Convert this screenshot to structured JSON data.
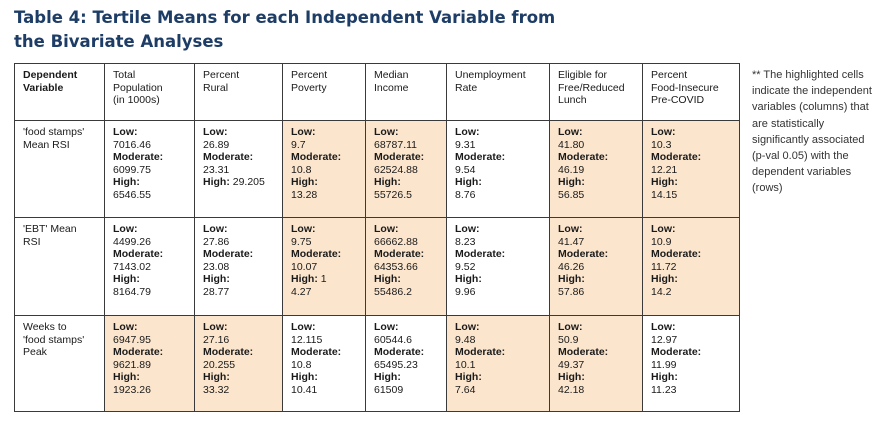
{
  "title": "Table 4: Tertile Means for each Independent Variable from the Bivariate Analyses",
  "note": "** The highlighted cells indicate the independent variables (columns) that are statistically significantly associated (p-val 0.05) with the dependent variables (rows)",
  "colors": {
    "highlight": "#fbe5cd",
    "title": "#1d3d66",
    "border": "#3a3a3a"
  },
  "table": {
    "headers": [
      [
        "Dependent",
        "Variable"
      ],
      [
        "Total",
        "Population",
        "(in 1000s)"
      ],
      [
        "Percent",
        "Rural"
      ],
      [
        "Percent",
        "Poverty"
      ],
      [
        "Median",
        "Income"
      ],
      [
        "Unemployment",
        "Rate"
      ],
      [
        "Eligible for",
        "Free/Reduced",
        "Lunch"
      ],
      [
        "Percent",
        "Food-Insecure",
        "Pre-COVID"
      ]
    ],
    "rows": [
      {
        "label": [
          "'food stamps'",
          "Mean RSI"
        ],
        "cells": [
          {
            "highlight": false,
            "lines": [
              {
                "l": "Low:",
                "v": ""
              },
              {
                "l": "",
                "v": "7016.46"
              },
              {
                "l": "Moderate:",
                "v": ""
              },
              {
                "l": "",
                "v": "6099.75"
              },
              {
                "l": "High:",
                "v": ""
              },
              {
                "l": "",
                "v": "6546.55"
              }
            ]
          },
          {
            "highlight": false,
            "lines": [
              {
                "l": "Low:",
                "v": ""
              },
              {
                "l": "",
                "v": "26.89"
              },
              {
                "l": "Moderate:",
                "v": ""
              },
              {
                "l": "",
                "v": "23.31"
              },
              {
                "l": "High:",
                "v": "29.205"
              }
            ]
          },
          {
            "highlight": true,
            "lines": [
              {
                "l": "Low:",
                "v": ""
              },
              {
                "l": "",
                "v": "9.7"
              },
              {
                "l": "Moderate:",
                "v": ""
              },
              {
                "l": "",
                "v": "10.8"
              },
              {
                "l": "High:",
                "v": ""
              },
              {
                "l": "",
                "v": "13.28"
              }
            ]
          },
          {
            "highlight": true,
            "lines": [
              {
                "l": "Low:",
                "v": ""
              },
              {
                "l": "",
                "v": "68787.11"
              },
              {
                "l": "Moderate:",
                "v": ""
              },
              {
                "l": "",
                "v": "62524.88"
              },
              {
                "l": "High:",
                "v": ""
              },
              {
                "l": "",
                "v": "55726.5"
              }
            ]
          },
          {
            "highlight": false,
            "lines": [
              {
                "l": "Low:",
                "v": ""
              },
              {
                "l": "",
                "v": "9.31"
              },
              {
                "l": "Moderate:",
                "v": ""
              },
              {
                "l": "",
                "v": "9.54"
              },
              {
                "l": "High:",
                "v": ""
              },
              {
                "l": "",
                "v": "8.76"
              }
            ]
          },
          {
            "highlight": true,
            "lines": [
              {
                "l": "Low:",
                "v": ""
              },
              {
                "l": "",
                "v": "41.80"
              },
              {
                "l": "Moderate:",
                "v": ""
              },
              {
                "l": "",
                "v": "46.19"
              },
              {
                "l": "High:",
                "v": ""
              },
              {
                "l": "",
                "v": "56.85"
              }
            ]
          },
          {
            "highlight": true,
            "lines": [
              {
                "l": "Low:",
                "v": ""
              },
              {
                "l": "",
                "v": "10.3"
              },
              {
                "l": "Moderate:",
                "v": ""
              },
              {
                "l": "",
                "v": "12.21"
              },
              {
                "l": "High:",
                "v": ""
              },
              {
                "l": "",
                "v": "14.15"
              }
            ]
          }
        ]
      },
      {
        "label": [
          "'EBT' Mean",
          "RSI"
        ],
        "cells": [
          {
            "highlight": false,
            "lines": [
              {
                "l": "Low:",
                "v": ""
              },
              {
                "l": "",
                "v": "4499.26"
              },
              {
                "l": "Moderate:",
                "v": ""
              },
              {
                "l": "",
                "v": "7143.02"
              },
              {
                "l": "High:",
                "v": ""
              },
              {
                "l": "",
                "v": "8164.79"
              }
            ]
          },
          {
            "highlight": false,
            "lines": [
              {
                "l": "Low:",
                "v": ""
              },
              {
                "l": "",
                "v": "27.86"
              },
              {
                "l": "Moderate:",
                "v": ""
              },
              {
                "l": "",
                "v": "23.08"
              },
              {
                "l": "High:",
                "v": ""
              },
              {
                "l": "",
                "v": "28.77"
              }
            ]
          },
          {
            "highlight": true,
            "lines": [
              {
                "l": "Low:",
                "v": ""
              },
              {
                "l": "",
                "v": "9.75"
              },
              {
                "l": "Moderate:",
                "v": ""
              },
              {
                "l": "",
                "v": "10.07"
              },
              {
                "l": "High:",
                "v": "1"
              },
              {
                "l": "",
                "v": "4.27"
              }
            ]
          },
          {
            "highlight": true,
            "lines": [
              {
                "l": "Low:",
                "v": ""
              },
              {
                "l": "",
                "v": "66662.88"
              },
              {
                "l": "Moderate:",
                "v": ""
              },
              {
                "l": "",
                "v": "64353.66"
              },
              {
                "l": "High:",
                "v": ""
              },
              {
                "l": "",
                "v": "55486.2"
              }
            ]
          },
          {
            "highlight": false,
            "lines": [
              {
                "l": "Low:",
                "v": ""
              },
              {
                "l": "",
                "v": "8.23"
              },
              {
                "l": "Moderate:",
                "v": ""
              },
              {
                "l": "",
                "v": "9.52"
              },
              {
                "l": "High:",
                "v": ""
              },
              {
                "l": "",
                "v": "9.96"
              }
            ]
          },
          {
            "highlight": true,
            "lines": [
              {
                "l": "Low:",
                "v": ""
              },
              {
                "l": "",
                "v": "41.47"
              },
              {
                "l": "Moderate:",
                "v": ""
              },
              {
                "l": "",
                "v": "46.26"
              },
              {
                "l": "High:",
                "v": ""
              },
              {
                "l": "",
                "v": "57.86"
              }
            ]
          },
          {
            "highlight": true,
            "lines": [
              {
                "l": "Low:",
                "v": ""
              },
              {
                "l": "",
                "v": "10.9"
              },
              {
                "l": "Moderate:",
                "v": ""
              },
              {
                "l": "",
                "v": "11.72"
              },
              {
                "l": "High:",
                "v": ""
              },
              {
                "l": "",
                "v": "14.2"
              }
            ]
          }
        ]
      },
      {
        "label": [
          "Weeks to",
          "'food stamps'",
          "Peak"
        ],
        "cells": [
          {
            "highlight": true,
            "lines": [
              {
                "l": "Low:",
                "v": ""
              },
              {
                "l": "",
                "v": "6947.95"
              },
              {
                "l": "Moderate:",
                "v": ""
              },
              {
                "l": "",
                "v": "9621.89"
              },
              {
                "l": "High:",
                "v": ""
              },
              {
                "l": "",
                "v": "1923.26"
              }
            ]
          },
          {
            "highlight": true,
            "lines": [
              {
                "l": "Low:",
                "v": ""
              },
              {
                "l": "",
                "v": "27.16"
              },
              {
                "l": "Moderate:",
                "v": ""
              },
              {
                "l": "",
                "v": "20.255"
              },
              {
                "l": "High:",
                "v": ""
              },
              {
                "l": "",
                "v": "33.32"
              }
            ]
          },
          {
            "highlight": false,
            "lines": [
              {
                "l": "Low:",
                "v": ""
              },
              {
                "l": "",
                "v": "12.115"
              },
              {
                "l": "Moderate:",
                "v": ""
              },
              {
                "l": "",
                "v": "10.8"
              },
              {
                "l": "High:",
                "v": ""
              },
              {
                "l": "",
                "v": "10.41"
              }
            ]
          },
          {
            "highlight": false,
            "lines": [
              {
                "l": "Low:",
                "v": ""
              },
              {
                "l": "",
                "v": "60544.6"
              },
              {
                "l": "Moderate:",
                "v": ""
              },
              {
                "l": "",
                "v": "65495.23"
              },
              {
                "l": "High:",
                "v": ""
              },
              {
                "l": "",
                "v": "61509"
              }
            ]
          },
          {
            "highlight": true,
            "lines": [
              {
                "l": "Low:",
                "v": ""
              },
              {
                "l": "",
                "v": "9.48"
              },
              {
                "l": "Moderate:",
                "v": ""
              },
              {
                "l": "",
                "v": "10.1"
              },
              {
                "l": "High:",
                "v": ""
              },
              {
                "l": "",
                "v": "7.64"
              }
            ]
          },
          {
            "highlight": true,
            "lines": [
              {
                "l": "Low:",
                "v": ""
              },
              {
                "l": "",
                "v": "50.9"
              },
              {
                "l": "Moderate:",
                "v": ""
              },
              {
                "l": "",
                "v": "49.37"
              },
              {
                "l": "High:",
                "v": ""
              },
              {
                "l": "",
                "v": "42.18"
              }
            ]
          },
          {
            "highlight": false,
            "lines": [
              {
                "l": "Low:",
                "v": ""
              },
              {
                "l": "",
                "v": "12.97"
              },
              {
                "l": "Moderate:",
                "v": ""
              },
              {
                "l": "",
                "v": "11.99"
              },
              {
                "l": "High:",
                "v": ""
              },
              {
                "l": "",
                "v": "11.23"
              }
            ]
          }
        ]
      }
    ]
  }
}
